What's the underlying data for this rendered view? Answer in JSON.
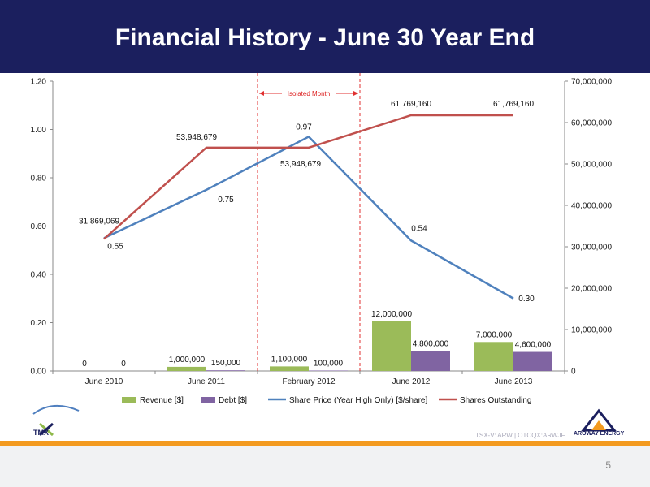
{
  "page": {
    "title": "Financial History - June 30 Year End",
    "ticker": "TSX-V: ARW  |  OTCQX:ARWJF",
    "page_number": "5",
    "company_logo_text": "AROWAY ENERGY",
    "exchange_logo_text": "TMX"
  },
  "colors": {
    "header": "#1b1f5e",
    "revenue": "#9bbb59",
    "debt": "#8064a2",
    "share_price": "#4f81bd",
    "shares_outstanding": "#c0504d",
    "isolated": "#e03030",
    "accent": "#f39a1f"
  },
  "chart_data": {
    "type": "bar",
    "categories": [
      "June 2010",
      "June 2011",
      "February 2012",
      "June 2012",
      "June 2013"
    ],
    "y_left": {
      "min": 0,
      "max": 1.2,
      "ticks": [
        "0.00",
        "0.20",
        "0.40",
        "0.60",
        "0.80",
        "1.00",
        "1.20"
      ]
    },
    "y_right": {
      "min": 0,
      "max": 70000000,
      "ticks": [
        "0",
        "10,000,000",
        "20,000,000",
        "30,000,000",
        "40,000,000",
        "50,000,000",
        "60,000,000",
        "70,000,000"
      ]
    },
    "annotation": {
      "text": "Isolated Month",
      "category": "February 2012"
    },
    "legend_position": "bottom",
    "series": [
      {
        "name": "Revenue [$]",
        "kind": "bar",
        "axis": "right",
        "values": [
          0,
          1000000,
          1100000,
          12000000,
          7000000
        ],
        "labels": [
          "0",
          "1,000,000",
          "1,100,000",
          "12,000,000",
          "7,000,000"
        ]
      },
      {
        "name": "Debt [$]",
        "kind": "bar",
        "axis": "right",
        "values": [
          0,
          150000,
          100000,
          4800000,
          4600000
        ],
        "labels": [
          "0",
          "150,000",
          "100,000",
          "4,800,000",
          "4,600,000"
        ]
      },
      {
        "name": "Share Price (Year High Only) [$/share]",
        "kind": "line",
        "axis": "left",
        "values": [
          0.55,
          0.75,
          0.97,
          0.54,
          0.3
        ],
        "labels": [
          "0.55",
          "0.75",
          "0.97",
          "0.54",
          "0.30"
        ]
      },
      {
        "name": "Shares Outstanding",
        "kind": "line",
        "axis": "right",
        "values": [
          31869069,
          53948679,
          53948679,
          61769160,
          61769160
        ],
        "labels": [
          "31,869,069",
          "53,948,679",
          "53,948,679",
          "61,769,160",
          "61,769,160"
        ]
      }
    ]
  }
}
